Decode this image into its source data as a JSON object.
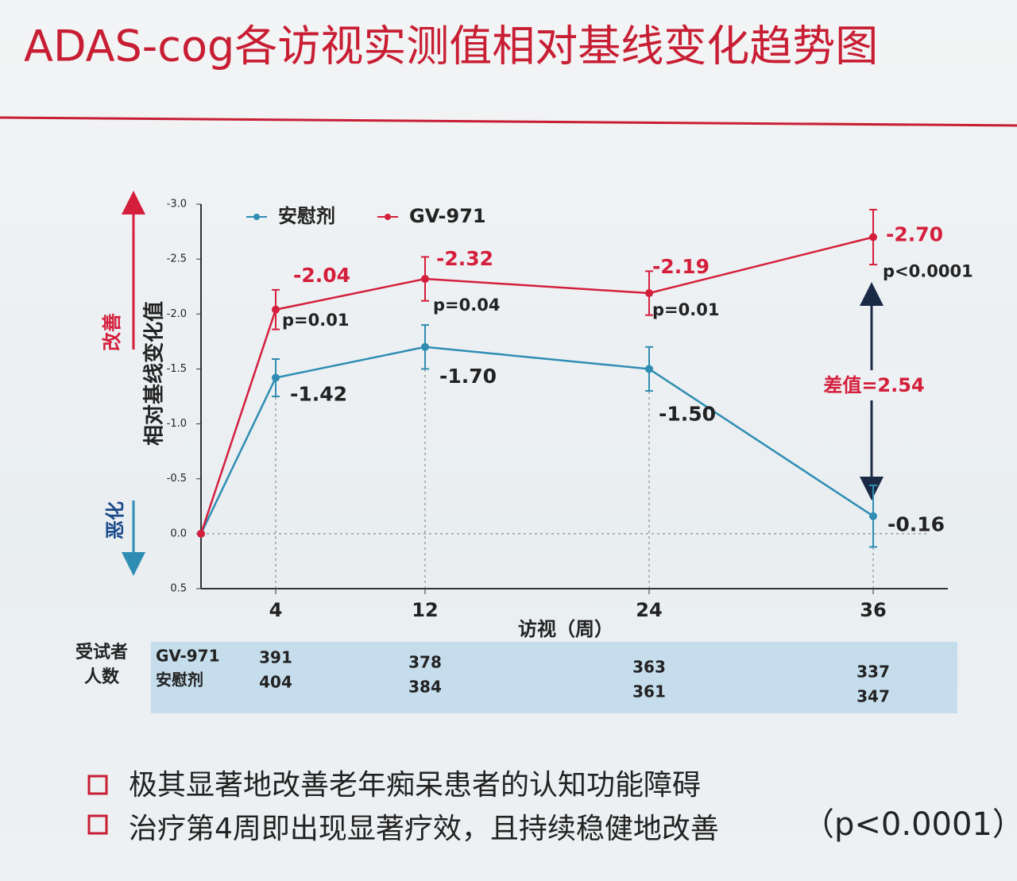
{
  "title": "ADAS-cog各访视实测值相对基线变化趋势图",
  "chart_data": {
    "type": "line",
    "y_label": "相对基线变化值",
    "x_label": "访视（周）",
    "improve_label": "改善",
    "worsen_label": "恶化",
    "x": [
      0,
      4,
      12,
      24,
      36
    ],
    "xlim": [
      0,
      40
    ],
    "xticks": [
      4,
      12,
      24,
      36
    ],
    "ylim": [
      0.5,
      -3.0
    ],
    "yticks": [
      {
        "value": 0.5,
        "label": "0.5"
      },
      {
        "value": 0,
        "label": "0.0"
      },
      {
        "value": -0.5,
        "label": "-0.5"
      },
      {
        "value": -1,
        "label": "-1.0"
      },
      {
        "value": -1.5,
        "label": "-1.5"
      },
      {
        "value": -2,
        "label": "-2.0"
      },
      {
        "value": -2.5,
        "label": "-2.5"
      },
      {
        "value": -3,
        "label": "-3.0"
      }
    ],
    "series": [
      {
        "name": "安慰剂",
        "color": "#2f8db3",
        "values": [
          0,
          -1.42,
          -1.7,
          -1.5,
          -0.16
        ],
        "value_labels": [
          null,
          "-1.42",
          "-1.70",
          "-1.50",
          "-0.16"
        ],
        "errors": [
          0,
          0.17,
          0.2,
          0.2,
          0.28
        ]
      },
      {
        "name": "GV-971",
        "color": "#d41f3c",
        "values": [
          0,
          -2.04,
          -2.32,
          -2.19,
          -2.7
        ],
        "value_labels": [
          null,
          "-2.04",
          "-2.32",
          "-2.19",
          "-2.70"
        ],
        "errors": [
          0,
          0.18,
          0.2,
          0.2,
          0.25
        ]
      }
    ],
    "p_values": [
      null,
      "p=0.01",
      "p=0.04",
      "p=0.01",
      "p<0.0001"
    ],
    "difference_label": "差值=2.54"
  },
  "table": {
    "row_header": [
      "受试者",
      "人数"
    ],
    "rows": [
      {
        "name": "GV-971",
        "values": [
          391,
          378,
          363,
          337
        ]
      },
      {
        "name": "安慰剂",
        "values": [
          404,
          384,
          361,
          347
        ]
      }
    ]
  },
  "bullets": [
    "极其显著地改善老年痴呆患者的认知功能障碍",
    "治疗第4周即出现显著疗效，且持续稳健地改善"
  ],
  "bullet_note": "（p<0.0001）"
}
